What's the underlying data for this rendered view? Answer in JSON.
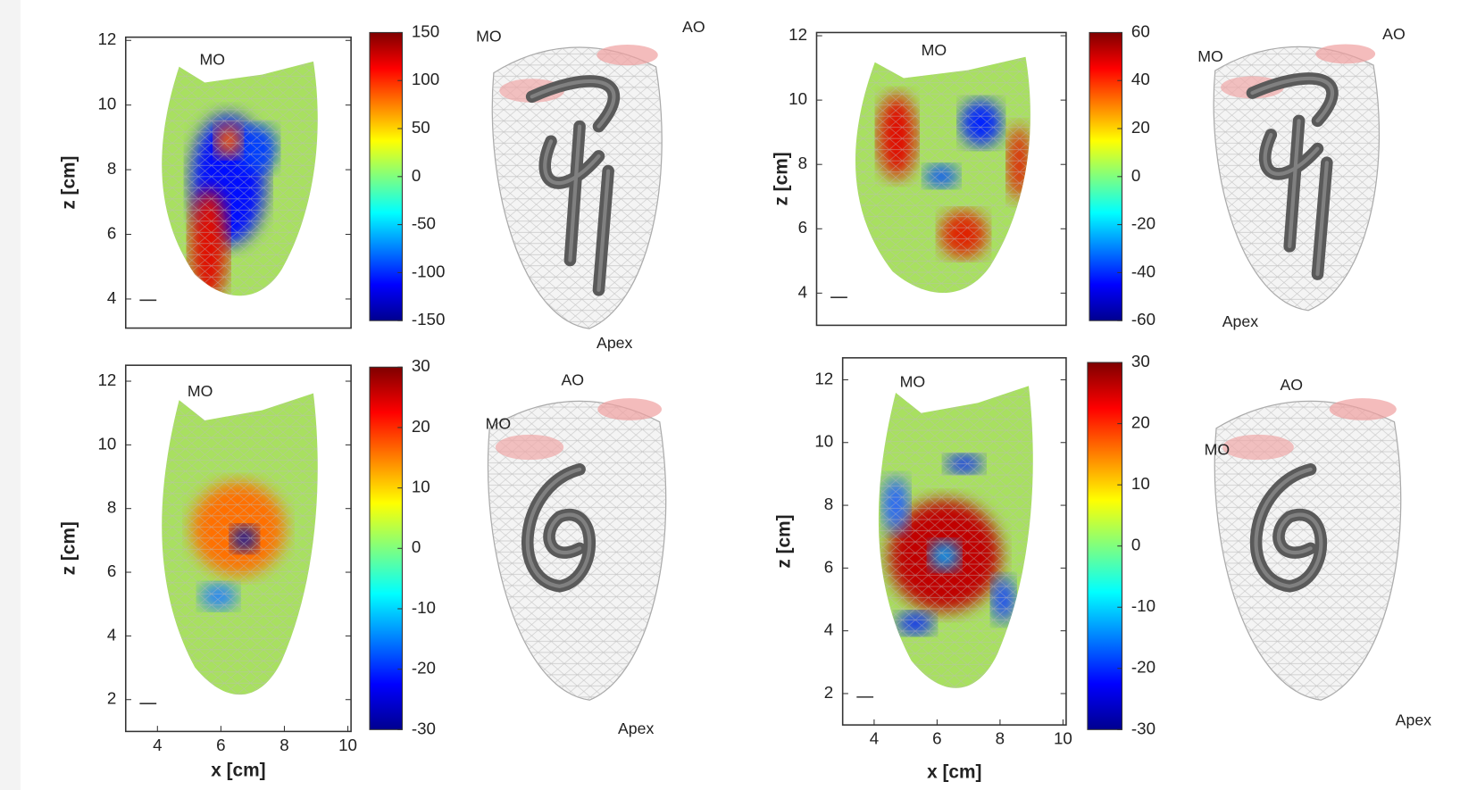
{
  "panels": [
    {
      "plot_label": "MO",
      "ylabel": "z [cm]",
      "ylim": [
        3.1,
        12.1
      ],
      "yticks": [
        4,
        6,
        8,
        10,
        12
      ],
      "colorbar": {
        "lim": [
          -150,
          150
        ],
        "ticks": [
          -150,
          -100,
          -50,
          0,
          50,
          100,
          150
        ]
      },
      "render_labels": [
        "MO",
        "AO",
        "Apex"
      ]
    },
    {
      "plot_label": "MO",
      "ylabel": "z [cm]",
      "ylim": [
        3,
        12.1
      ],
      "yticks": [
        4,
        6,
        8,
        10,
        12
      ],
      "colorbar": {
        "lim": [
          -60,
          60
        ],
        "ticks": [
          -60,
          -40,
          -20,
          0,
          20,
          40,
          60
        ]
      },
      "render_labels": [
        "MO",
        "AO",
        "Apex"
      ]
    },
    {
      "plot_label": "MO",
      "ylabel": "z [cm]",
      "ylim": [
        1,
        12.5
      ],
      "yticks": [
        2,
        4,
        6,
        8,
        10,
        12
      ],
      "xlabel": "x [cm]",
      "xlim": [
        3,
        10.1
      ],
      "xticks": [
        4,
        6,
        8,
        10
      ],
      "colorbar": {
        "lim": [
          -30,
          30
        ],
        "ticks": [
          -30,
          -20,
          -10,
          0,
          10,
          20,
          30
        ]
      },
      "render_labels": [
        "AO",
        "MO",
        "Apex"
      ]
    },
    {
      "plot_label": "MO",
      "ylabel": "z [cm]",
      "ylim": [
        1,
        12.7
      ],
      "yticks": [
        2,
        4,
        6,
        8,
        10,
        12
      ],
      "xlabel": "x [cm]",
      "xlim": [
        3,
        10.1
      ],
      "xticks": [
        4,
        6,
        8,
        10
      ],
      "colorbar": {
        "lim": [
          -30,
          30
        ],
        "ticks": [
          -30,
          -20,
          -10,
          0,
          10,
          20,
          30
        ]
      },
      "render_labels": [
        "AO",
        "MO",
        "Apex"
      ]
    }
  ]
}
